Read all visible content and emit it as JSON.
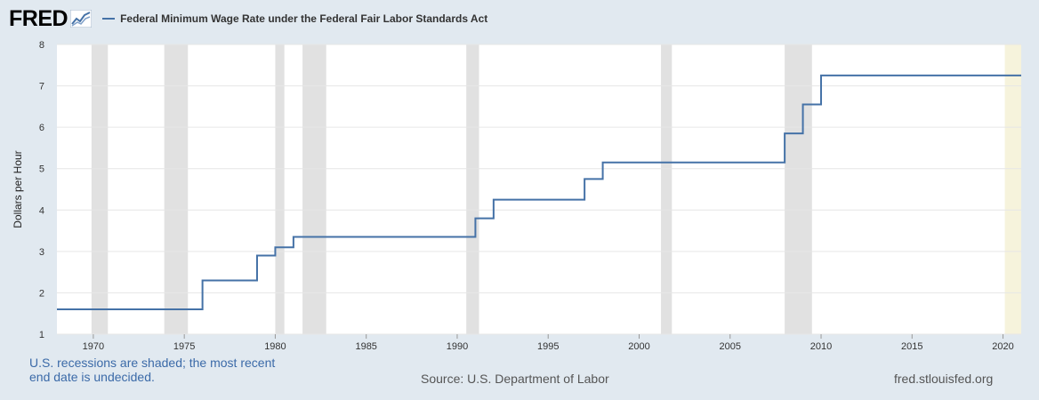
{
  "header": {
    "logo_text": "FRED",
    "series_title": "Federal Minimum Wage Rate under the Federal Fair Labor Standards Act"
  },
  "colors": {
    "series": "#4572a7",
    "recession": "#e1e1e1",
    "undecided": "#f6f3dc",
    "background": "#e1e9f0",
    "grid": "#e6e6e6"
  },
  "footer": {
    "recession_note": "U.S. recessions are shaded; the most recent end date is undecided.",
    "source": "Source: U.S. Department of Labor",
    "site": "fred.stlouisfed.org"
  },
  "chart_data": {
    "type": "line",
    "step": true,
    "title": "Federal Minimum Wage Rate under the Federal Fair Labor Standards Act",
    "xlabel": "",
    "ylabel": "Dollars per Hour",
    "xlim": [
      1968.0,
      2021.0
    ],
    "ylim": [
      1,
      8
    ],
    "x_ticks": [
      "1970",
      "1975",
      "1980",
      "1985",
      "1990",
      "1995",
      "2000",
      "2005",
      "2010",
      "2015",
      "2020"
    ],
    "y_ticks": [
      "1",
      "2",
      "3",
      "4",
      "5",
      "6",
      "7",
      "8"
    ],
    "grid": true,
    "series": [
      {
        "name": "Federal Minimum Wage Rate under the Federal Fair Labor Standards Act",
        "x": [
          1968.0,
          1976.0,
          1979.0,
          1980.0,
          1981.0,
          1991.0,
          1992.0,
          1997.0,
          1998.0,
          2008.0,
          2009.0,
          2010.0
        ],
        "y": [
          1.6,
          2.3,
          2.9,
          3.1,
          3.35,
          3.8,
          4.25,
          4.75,
          5.15,
          5.85,
          6.55,
          7.25
        ]
      }
    ],
    "recessions": [
      [
        1969.9,
        1970.8
      ],
      [
        1973.9,
        1975.2
      ],
      [
        1980.0,
        1980.5
      ],
      [
        1981.5,
        1982.8
      ],
      [
        1990.5,
        1991.2
      ],
      [
        2001.2,
        2001.8
      ],
      [
        2008.0,
        2009.5
      ]
    ],
    "undecided_recession_start": 2020.1
  }
}
